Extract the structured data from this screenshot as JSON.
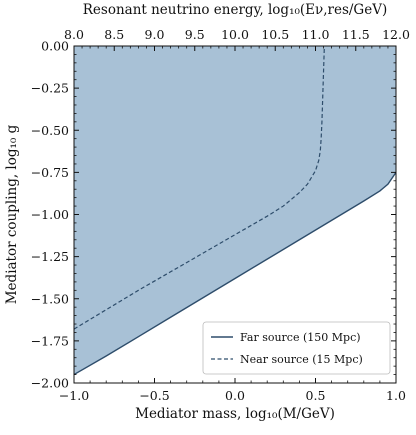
{
  "chart_data": {
    "type": "area",
    "xlabel": "Mediator mass, log₁₀(M/GeV)",
    "ylabel": "Mediator coupling, log₁₀ g",
    "x2label": "Resonant neutrino energy, log₁₀(Eν,res/GeV)",
    "xlim": [
      -1.0,
      1.0
    ],
    "ylim": [
      -2.0,
      0.0
    ],
    "x2lim": [
      8.0,
      12.0
    ],
    "xticks": [
      "−1.0",
      "−0.5",
      "0.0",
      "0.5",
      "1.0"
    ],
    "yticks": [
      "0.00",
      "−0.25",
      "−0.50",
      "−0.75",
      "−1.00",
      "−1.25",
      "−1.50",
      "−1.75",
      "−2.00"
    ],
    "x2ticks": [
      "8.0",
      "8.5",
      "9.0",
      "9.5",
      "10.0",
      "10.5",
      "11.0",
      "11.5",
      "12.0"
    ],
    "grid": false,
    "legend_position": "bottom-right",
    "fill_color": "#a8c1d6",
    "line_color": "#2e4d6b",
    "series": [
      {
        "name": "Far source (150 Mpc)",
        "style": "solid",
        "filled": true,
        "x": [
          -1.0,
          -0.8,
          -0.6,
          -0.4,
          -0.2,
          0.0,
          0.2,
          0.4,
          0.6,
          0.8,
          0.9,
          0.95,
          1.0
        ],
        "y": [
          -1.95,
          -1.84,
          -1.725,
          -1.61,
          -1.495,
          -1.38,
          -1.265,
          -1.15,
          -1.035,
          -0.92,
          -0.86,
          -0.82,
          -0.75
        ]
      },
      {
        "name": "Near source (15 Mpc)",
        "style": "dashed",
        "filled": false,
        "x": [
          -1.0,
          -0.8,
          -0.6,
          -0.4,
          -0.2,
          0.0,
          0.2,
          0.3,
          0.4,
          0.45,
          0.5,
          0.52,
          0.53,
          0.535,
          0.54,
          0.545,
          0.55,
          0.555
        ],
        "y": [
          -1.68,
          -1.565,
          -1.45,
          -1.34,
          -1.23,
          -1.12,
          -1.01,
          -0.95,
          -0.87,
          -0.82,
          -0.74,
          -0.68,
          -0.62,
          -0.55,
          -0.45,
          -0.3,
          -0.15,
          0.0
        ]
      }
    ]
  }
}
